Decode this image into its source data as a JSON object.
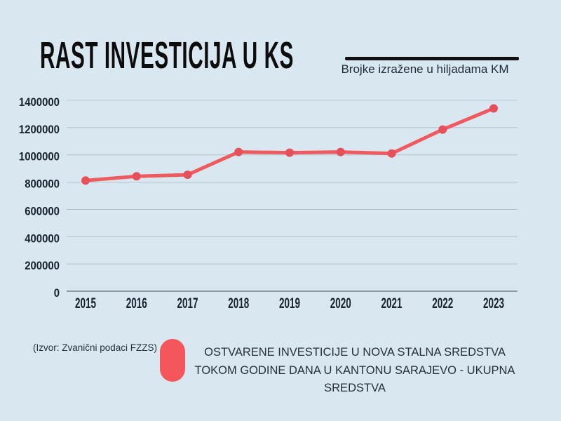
{
  "header": {
    "title": "RAST INVESTICIJA U KS",
    "subtitle": "Brojke izražene u hiljadama KM"
  },
  "footer": {
    "source": "(Izvor: Zvanični podaci FZZS)"
  },
  "colors": {
    "background": "#d9e7f0",
    "title_text": "#0d0d0d",
    "divider": "#101010",
    "subtitle_text": "#1f2b38",
    "axis_text": "#17222e",
    "gridline": "#b7c5cf",
    "axis_line": "#76838e",
    "line": "#ef5a5f",
    "point": "#e5505a",
    "legend_marker": "#f3575c",
    "footer_text": "#25303a"
  },
  "chart_data": {
    "type": "line",
    "title": "RAST INVESTICIJA U KS",
    "xlabel": "",
    "ylabel": "",
    "categories": [
      "2015",
      "2016",
      "2017",
      "2018",
      "2019",
      "2020",
      "2021",
      "2022",
      "2023"
    ],
    "series": [
      {
        "name": "OSTVARENE INVESTICIJE U NOVA STALNA SREDSTVA TOKOM GODINE DANA U KANTONU SARAJEVO - UKUPNA SREDSTVA",
        "values": [
          812000,
          843000,
          854000,
          1021000,
          1016000,
          1021000,
          1010000,
          1186000,
          1341000
        ]
      }
    ],
    "ylim": [
      0,
      1400000
    ],
    "ytick_step": 200000,
    "yticks": [
      0,
      200000,
      400000,
      600000,
      800000,
      1000000,
      1200000,
      1400000
    ],
    "grid": true,
    "legend_position": "bottom",
    "units": "hiljade KM"
  }
}
